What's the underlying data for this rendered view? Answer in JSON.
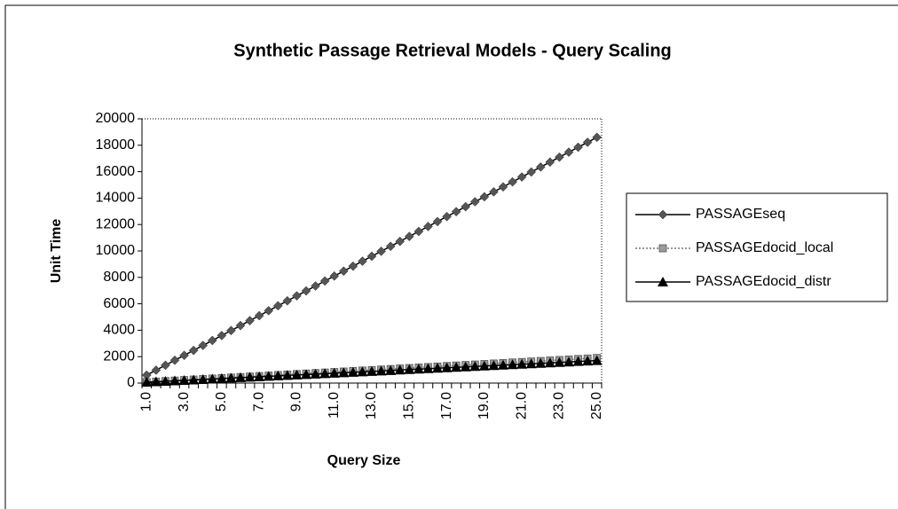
{
  "chart_data": {
    "type": "line",
    "title": "Synthetic Passage Retrieval Models - Query Scaling",
    "x_label": "Query Size",
    "y_label": "Unit Time",
    "categories": [
      "1.0",
      null,
      null,
      null,
      "3.0",
      null,
      null,
      null,
      "5.0",
      null,
      null,
      null,
      "7.0",
      null,
      null,
      null,
      "9.0",
      null,
      null,
      null,
      "11.0",
      null,
      null,
      null,
      "13.0",
      null,
      null,
      null,
      "15.0",
      null,
      null,
      null,
      "17.0",
      null,
      null,
      null,
      "19.0",
      null,
      null,
      null,
      "21.0",
      null,
      null,
      null,
      "23.0",
      null,
      null,
      null,
      "25.0"
    ],
    "series": [
      {
        "name": "PASSAGEseq",
        "color": "#555555",
        "marker": "diamond",
        "values": [
          600,
          975,
          1350,
          1725,
          2100,
          2475,
          2850,
          3225,
          3600,
          3975,
          4350,
          4725,
          5100,
          5475,
          5850,
          6225,
          6600,
          6975,
          7350,
          7725,
          8100,
          8475,
          8850,
          9225,
          9600,
          9975,
          10350,
          10725,
          11100,
          11475,
          11850,
          12225,
          12600,
          12975,
          13350,
          13725,
          14100,
          14475,
          14850,
          15225,
          15600,
          15975,
          16350,
          16725,
          17100,
          17475,
          17850,
          18225,
          18600
        ]
      },
      {
        "name": "PASSAGEdocid_local",
        "color": "#9a9a9a",
        "marker": "square",
        "values": [
          76,
          114,
          152,
          190,
          228,
          266,
          304,
          342,
          380,
          418,
          456,
          494,
          532,
          570,
          608,
          646,
          684,
          722,
          760,
          798,
          836,
          874,
          912,
          950,
          988,
          1026,
          1064,
          1102,
          1140,
          1178,
          1216,
          1254,
          1292,
          1330,
          1368,
          1406,
          1444,
          1482,
          1520,
          1558,
          1596,
          1634,
          1672,
          1710,
          1748,
          1786,
          1824,
          1862,
          1900
        ]
      },
      {
        "name": "PASSAGEdocid_distr",
        "color": "#000000",
        "marker": "triangle",
        "values": [
          68,
          102,
          136,
          170,
          204,
          238,
          272,
          306,
          340,
          374,
          408,
          442,
          476,
          510,
          544,
          578,
          612,
          646,
          680,
          714,
          748,
          782,
          816,
          850,
          884,
          918,
          952,
          986,
          1020,
          1054,
          1088,
          1122,
          1156,
          1190,
          1224,
          1258,
          1292,
          1326,
          1360,
          1394,
          1428,
          1462,
          1496,
          1530,
          1564,
          1598,
          1632,
          1666,
          1700
        ]
      }
    ],
    "ylim": [
      0,
      20000
    ],
    "yticks": [
      0,
      2000,
      4000,
      6000,
      8000,
      10000,
      12000,
      14000,
      16000,
      18000,
      20000
    ],
    "legend": "right"
  }
}
